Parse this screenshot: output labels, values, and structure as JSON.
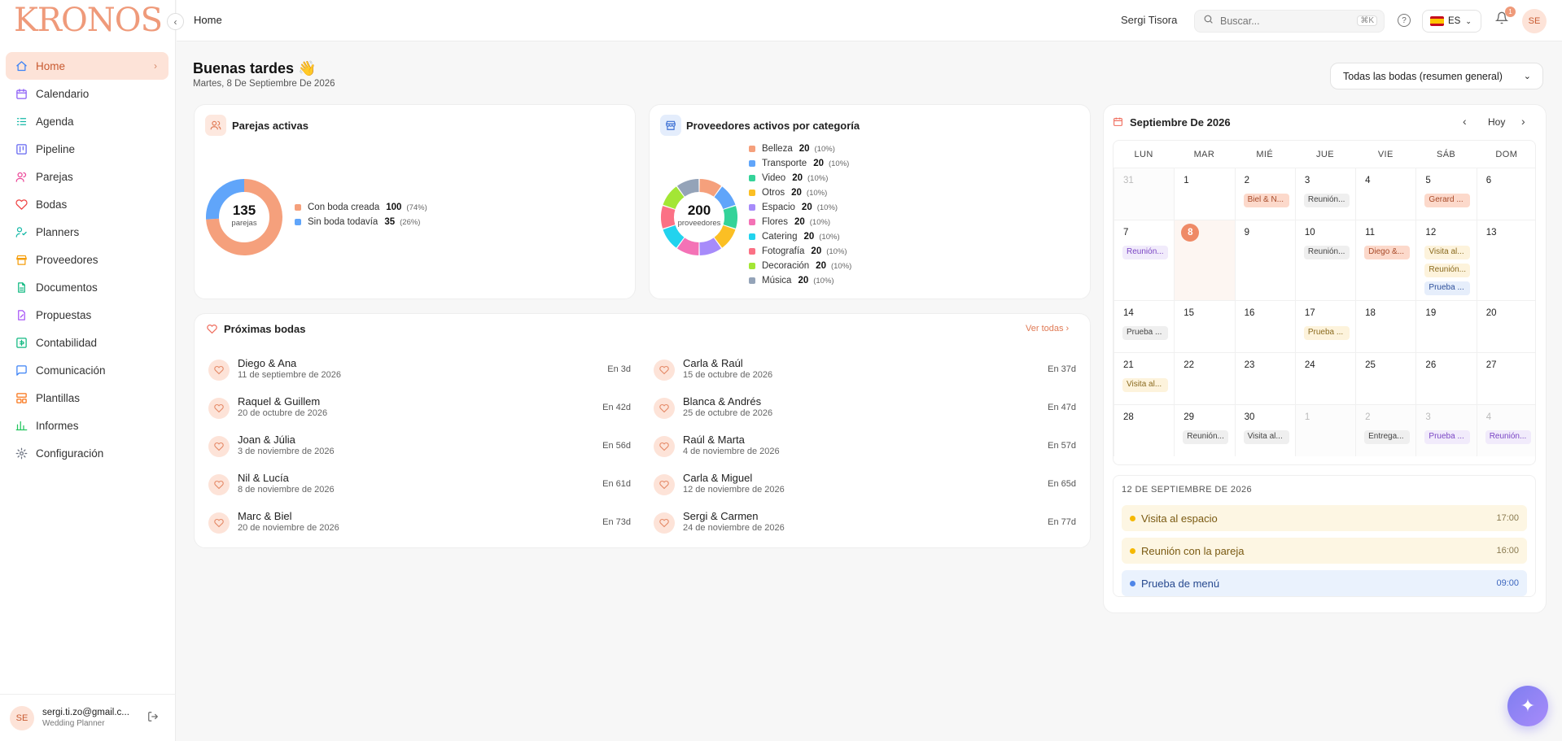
{
  "sidebar": {
    "logo": "KRONOS",
    "items": [
      {
        "label": "Home",
        "icon": "home-icon",
        "color": "#3b82f6"
      },
      {
        "label": "Calendario",
        "icon": "calendar-icon",
        "color": "#8b5cf6"
      },
      {
        "label": "Agenda",
        "icon": "agenda-icon",
        "color": "#14b8a6"
      },
      {
        "label": "Pipeline",
        "icon": "pipeline-icon",
        "color": "#6366f1"
      },
      {
        "label": "Parejas",
        "icon": "users-icon",
        "color": "#ec4899"
      },
      {
        "label": "Bodas",
        "icon": "heart-icon",
        "color": "#ef4444"
      },
      {
        "label": "Planners",
        "icon": "planner-icon",
        "color": "#14b8a6"
      },
      {
        "label": "Proveedores",
        "icon": "store-icon",
        "color": "#f59e0b"
      },
      {
        "label": "Documentos",
        "icon": "document-icon",
        "color": "#10b981"
      },
      {
        "label": "Propuestas",
        "icon": "proposal-icon",
        "color": "#a855f7"
      },
      {
        "label": "Contabilidad",
        "icon": "accounting-icon",
        "color": "#10b981"
      },
      {
        "label": "Comunicación",
        "icon": "chat-icon",
        "color": "#3b82f6"
      },
      {
        "label": "Plantillas",
        "icon": "template-icon",
        "color": "#f97316"
      },
      {
        "label": "Informes",
        "icon": "chart-icon",
        "color": "#22c55e"
      },
      {
        "label": "Configuración",
        "icon": "gear-icon",
        "color": "#6b7280"
      }
    ],
    "user": {
      "initials": "SE",
      "email": "sergi.ti.zo@gmail.c...",
      "role": "Wedding Planner"
    }
  },
  "topbar": {
    "breadcrumb": "Home",
    "user_name": "Sergi Tisora",
    "search_placeholder": "Buscar...",
    "search_shortcut": "⌘K",
    "language": "ES",
    "notifications": "1",
    "avatar": "SE"
  },
  "main": {
    "greeting": "Buenas tardes 👋",
    "date": "Martes, 8 De Septiembre De 2026",
    "filter": "Todas las bodas (resumen general)"
  },
  "couples": {
    "title": "Parejas activas",
    "total": "135",
    "unit": "parejas",
    "legend": [
      {
        "label": "Con boda creada",
        "value": 100,
        "pct": "(74%)",
        "color": "#f5a07c"
      },
      {
        "label": "Sin boda todavía",
        "value": 35,
        "pct": "(26%)",
        "color": "#60a5fa"
      }
    ]
  },
  "providers": {
    "title": "Proveedores activos por categoría",
    "total": "200",
    "unit": "proveedores",
    "legend": [
      {
        "label": "Belleza",
        "value": 20,
        "pct": "(10%)",
        "color": "#f5a07c"
      },
      {
        "label": "Transporte",
        "value": 20,
        "pct": "(10%)",
        "color": "#60a5fa"
      },
      {
        "label": "Video",
        "value": 20,
        "pct": "(10%)",
        "color": "#34d399"
      },
      {
        "label": "Otros",
        "value": 20,
        "pct": "(10%)",
        "color": "#fbbf24"
      },
      {
        "label": "Espacio",
        "value": 20,
        "pct": "(10%)",
        "color": "#a78bfa"
      },
      {
        "label": "Flores",
        "value": 20,
        "pct": "(10%)",
        "color": "#f472b6"
      },
      {
        "label": "Catering",
        "value": 20,
        "pct": "(10%)",
        "color": "#22d3ee"
      },
      {
        "label": "Fotografía",
        "value": 20,
        "pct": "(10%)",
        "color": "#fb7185"
      },
      {
        "label": "Decoración",
        "value": 20,
        "pct": "(10%)",
        "color": "#a3e635"
      },
      {
        "label": "Música",
        "value": 20,
        "pct": "(10%)",
        "color": "#94a3b8"
      }
    ]
  },
  "weddings": {
    "title": "Próximas bodas",
    "see_all": "Ver todas",
    "items": [
      {
        "name": "Diego & Ana",
        "date": "11 de septiembre de 2026",
        "in": "En 3d"
      },
      {
        "name": "Carla & Raúl",
        "date": "15 de octubre de 2026",
        "in": "En 37d"
      },
      {
        "name": "Raquel & Guillem",
        "date": "20 de octubre de 2026",
        "in": "En 42d"
      },
      {
        "name": "Blanca & Andrés",
        "date": "25 de octubre de 2026",
        "in": "En 47d"
      },
      {
        "name": "Joan & Júlia",
        "date": "3 de noviembre de 2026",
        "in": "En 56d"
      },
      {
        "name": "Raúl & Marta",
        "date": "4 de noviembre de 2026",
        "in": "En 57d"
      },
      {
        "name": "Nil & Lucía",
        "date": "8 de noviembre de 2026",
        "in": "En 61d"
      },
      {
        "name": "Carla & Miguel",
        "date": "12 de noviembre de 2026",
        "in": "En 65d"
      },
      {
        "name": "Marc & Biel",
        "date": "20 de noviembre de 2026",
        "in": "En 73d"
      },
      {
        "name": "Sergi & Carmen",
        "date": "24 de noviembre de 2026",
        "in": "En 77d"
      }
    ]
  },
  "calendar": {
    "title": "Septiembre De 2026",
    "today_label": "Hoy",
    "weekdays": [
      "LUN",
      "MAR",
      "MIÉ",
      "JUE",
      "VIE",
      "SÁB",
      "DOM"
    ],
    "weeks": [
      [
        {
          "d": "31",
          "out": true
        },
        {
          "d": "1"
        },
        {
          "d": "2",
          "ev": [
            {
              "t": "Biel & N...",
              "c": "peach"
            }
          ]
        },
        {
          "d": "3",
          "ev": [
            {
              "t": "Reunión...",
              "c": "gray"
            }
          ]
        },
        {
          "d": "4"
        },
        {
          "d": "5",
          "ev": [
            {
              "t": "Gerard ...",
              "c": "peach"
            }
          ]
        },
        {
          "d": "6"
        }
      ],
      [
        {
          "d": "7",
          "ev": [
            {
              "t": "Reunión...",
              "c": "purple"
            }
          ]
        },
        {
          "d": "8",
          "today": true
        },
        {
          "d": "9"
        },
        {
          "d": "10",
          "ev": [
            {
              "t": "Reunión...",
              "c": "gray"
            }
          ]
        },
        {
          "d": "11",
          "ev": [
            {
              "t": "Diego &...",
              "c": "peach"
            }
          ]
        },
        {
          "d": "12",
          "ev": [
            {
              "t": "Visita al...",
              "c": "yellow"
            },
            {
              "t": "Reunión...",
              "c": "yellow"
            },
            {
              "t": "Prueba ...",
              "c": "blue"
            }
          ]
        },
        {
          "d": "13"
        }
      ],
      [
        {
          "d": "14",
          "ev": [
            {
              "t": "Prueba ...",
              "c": "gray"
            }
          ]
        },
        {
          "d": "15"
        },
        {
          "d": "16"
        },
        {
          "d": "17",
          "ev": [
            {
              "t": "Prueba ...",
              "c": "yellow"
            }
          ]
        },
        {
          "d": "18"
        },
        {
          "d": "19"
        },
        {
          "d": "20"
        }
      ],
      [
        {
          "d": "21",
          "ev": [
            {
              "t": "Visita al...",
              "c": "yellow"
            }
          ]
        },
        {
          "d": "22"
        },
        {
          "d": "23"
        },
        {
          "d": "24"
        },
        {
          "d": "25"
        },
        {
          "d": "26"
        },
        {
          "d": "27"
        }
      ],
      [
        {
          "d": "28"
        },
        {
          "d": "29",
          "ev": [
            {
              "t": "Reunión...",
              "c": "gray"
            }
          ]
        },
        {
          "d": "30",
          "ev": [
            {
              "t": "Visita al...",
              "c": "gray"
            }
          ]
        },
        {
          "d": "1",
          "out": true
        },
        {
          "d": "2",
          "out": true,
          "ev": [
            {
              "t": "Entrega...",
              "c": "gray"
            }
          ]
        },
        {
          "d": "3",
          "out": true,
          "ev": [
            {
              "t": "Prueba ...",
              "c": "purple"
            }
          ]
        },
        {
          "d": "4",
          "out": true,
          "ev": [
            {
              "t": "Reunión...",
              "c": "purple"
            }
          ]
        }
      ]
    ],
    "selected_day": {
      "title": "12 DE SEPTIEMBRE DE 2026",
      "events": [
        {
          "label": "Visita al espacio",
          "time": "17:00",
          "kind": "yellow"
        },
        {
          "label": "Reunión con la pareja",
          "time": "16:00",
          "kind": "yellow"
        },
        {
          "label": "Prueba de menú",
          "time": "09:00",
          "kind": "blue"
        }
      ]
    }
  }
}
